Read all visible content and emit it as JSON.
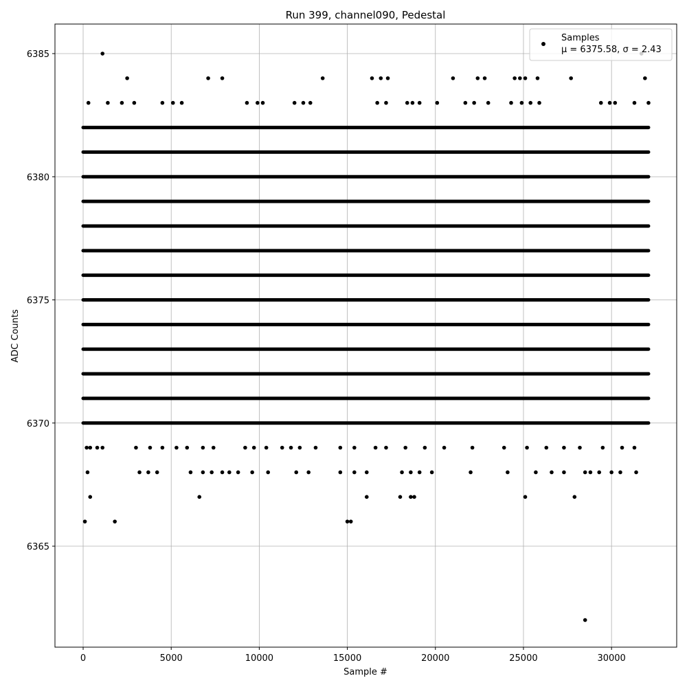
{
  "chart_data": {
    "type": "scatter",
    "title": "Run 399, channel090, Pedestal",
    "xlabel": "Sample #",
    "ylabel": "ADC Counts",
    "xlim": [
      -1600,
      33700
    ],
    "ylim": [
      6360.9,
      6386.2
    ],
    "xticks": [
      0,
      5000,
      10000,
      15000,
      20000,
      25000,
      30000
    ],
    "yticks": [
      6365,
      6370,
      6375,
      6380,
      6385
    ],
    "grid": true,
    "legend_position": "top-right",
    "marker_color": "#000000",
    "series": [
      {
        "name": "Samples",
        "stats_label": "μ = 6375.58, σ = 2.43",
        "x_range": [
          0,
          32100
        ],
        "dense_levels": [
          6370,
          6371,
          6372,
          6373,
          6374,
          6375,
          6376,
          6377,
          6378,
          6379,
          6380,
          6381,
          6382
        ],
        "outliers": [
          {
            "x": 1100,
            "y": 6385
          },
          {
            "x": 31700,
            "y": 6385
          },
          {
            "x": 2500,
            "y": 6384
          },
          {
            "x": 7100,
            "y": 6384
          },
          {
            "x": 7900,
            "y": 6384
          },
          {
            "x": 13600,
            "y": 6384
          },
          {
            "x": 16400,
            "y": 6384
          },
          {
            "x": 16900,
            "y": 6384
          },
          {
            "x": 17300,
            "y": 6384
          },
          {
            "x": 21000,
            "y": 6384
          },
          {
            "x": 22400,
            "y": 6384
          },
          {
            "x": 22800,
            "y": 6384
          },
          {
            "x": 24500,
            "y": 6384
          },
          {
            "x": 24800,
            "y": 6384
          },
          {
            "x": 25100,
            "y": 6384
          },
          {
            "x": 25800,
            "y": 6384
          },
          {
            "x": 27700,
            "y": 6384
          },
          {
            "x": 31900,
            "y": 6384
          },
          {
            "x": 300,
            "y": 6383
          },
          {
            "x": 1400,
            "y": 6383
          },
          {
            "x": 2200,
            "y": 6383
          },
          {
            "x": 2900,
            "y": 6383
          },
          {
            "x": 4500,
            "y": 6383
          },
          {
            "x": 5100,
            "y": 6383
          },
          {
            "x": 5600,
            "y": 6383
          },
          {
            "x": 9300,
            "y": 6383
          },
          {
            "x": 9900,
            "y": 6383
          },
          {
            "x": 10200,
            "y": 6383
          },
          {
            "x": 12000,
            "y": 6383
          },
          {
            "x": 12500,
            "y": 6383
          },
          {
            "x": 12900,
            "y": 6383
          },
          {
            "x": 16700,
            "y": 6383
          },
          {
            "x": 17200,
            "y": 6383
          },
          {
            "x": 18400,
            "y": 6383
          },
          {
            "x": 18700,
            "y": 6383
          },
          {
            "x": 19100,
            "y": 6383
          },
          {
            "x": 20100,
            "y": 6383
          },
          {
            "x": 21700,
            "y": 6383
          },
          {
            "x": 22200,
            "y": 6383
          },
          {
            "x": 23000,
            "y": 6383
          },
          {
            "x": 24300,
            "y": 6383
          },
          {
            "x": 24900,
            "y": 6383
          },
          {
            "x": 25400,
            "y": 6383
          },
          {
            "x": 25900,
            "y": 6383
          },
          {
            "x": 29400,
            "y": 6383
          },
          {
            "x": 29900,
            "y": 6383
          },
          {
            "x": 30200,
            "y": 6383
          },
          {
            "x": 31300,
            "y": 6383
          },
          {
            "x": 32100,
            "y": 6383
          },
          {
            "x": 200,
            "y": 6369
          },
          {
            "x": 400,
            "y": 6369
          },
          {
            "x": 800,
            "y": 6369
          },
          {
            "x": 1100,
            "y": 6369
          },
          {
            "x": 3000,
            "y": 6369
          },
          {
            "x": 3800,
            "y": 6369
          },
          {
            "x": 4500,
            "y": 6369
          },
          {
            "x": 5300,
            "y": 6369
          },
          {
            "x": 5900,
            "y": 6369
          },
          {
            "x": 6800,
            "y": 6369
          },
          {
            "x": 7400,
            "y": 6369
          },
          {
            "x": 9200,
            "y": 6369
          },
          {
            "x": 9700,
            "y": 6369
          },
          {
            "x": 10400,
            "y": 6369
          },
          {
            "x": 11300,
            "y": 6369
          },
          {
            "x": 11800,
            "y": 6369
          },
          {
            "x": 12300,
            "y": 6369
          },
          {
            "x": 13200,
            "y": 6369
          },
          {
            "x": 14600,
            "y": 6369
          },
          {
            "x": 15400,
            "y": 6369
          },
          {
            "x": 16600,
            "y": 6369
          },
          {
            "x": 17200,
            "y": 6369
          },
          {
            "x": 18300,
            "y": 6369
          },
          {
            "x": 19400,
            "y": 6369
          },
          {
            "x": 20500,
            "y": 6369
          },
          {
            "x": 22100,
            "y": 6369
          },
          {
            "x": 23900,
            "y": 6369
          },
          {
            "x": 25200,
            "y": 6369
          },
          {
            "x": 26300,
            "y": 6369
          },
          {
            "x": 27300,
            "y": 6369
          },
          {
            "x": 28200,
            "y": 6369
          },
          {
            "x": 29500,
            "y": 6369
          },
          {
            "x": 30600,
            "y": 6369
          },
          {
            "x": 31300,
            "y": 6369
          },
          {
            "x": 250,
            "y": 6368
          },
          {
            "x": 3200,
            "y": 6368
          },
          {
            "x": 3700,
            "y": 6368
          },
          {
            "x": 4200,
            "y": 6368
          },
          {
            "x": 6100,
            "y": 6368
          },
          {
            "x": 6800,
            "y": 6368
          },
          {
            "x": 7300,
            "y": 6368
          },
          {
            "x": 7900,
            "y": 6368
          },
          {
            "x": 8300,
            "y": 6368
          },
          {
            "x": 8800,
            "y": 6368
          },
          {
            "x": 9600,
            "y": 6368
          },
          {
            "x": 10500,
            "y": 6368
          },
          {
            "x": 12100,
            "y": 6368
          },
          {
            "x": 12800,
            "y": 6368
          },
          {
            "x": 14600,
            "y": 6368
          },
          {
            "x": 15400,
            "y": 6368
          },
          {
            "x": 16100,
            "y": 6368
          },
          {
            "x": 18100,
            "y": 6368
          },
          {
            "x": 18600,
            "y": 6368
          },
          {
            "x": 19100,
            "y": 6368
          },
          {
            "x": 19800,
            "y": 6368
          },
          {
            "x": 22000,
            "y": 6368
          },
          {
            "x": 24100,
            "y": 6368
          },
          {
            "x": 25700,
            "y": 6368
          },
          {
            "x": 26600,
            "y": 6368
          },
          {
            "x": 27300,
            "y": 6368
          },
          {
            "x": 28500,
            "y": 6368
          },
          {
            "x": 28800,
            "y": 6368
          },
          {
            "x": 29300,
            "y": 6368
          },
          {
            "x": 30000,
            "y": 6368
          },
          {
            "x": 30500,
            "y": 6368
          },
          {
            "x": 31400,
            "y": 6368
          },
          {
            "x": 400,
            "y": 6367
          },
          {
            "x": 6600,
            "y": 6367
          },
          {
            "x": 16100,
            "y": 6367
          },
          {
            "x": 18000,
            "y": 6367
          },
          {
            "x": 18600,
            "y": 6367
          },
          {
            "x": 18800,
            "y": 6367
          },
          {
            "x": 25100,
            "y": 6367
          },
          {
            "x": 27900,
            "y": 6367
          },
          {
            "x": 100,
            "y": 6366
          },
          {
            "x": 1800,
            "y": 6366
          },
          {
            "x": 15000,
            "y": 6366
          },
          {
            "x": 15200,
            "y": 6366
          },
          {
            "x": 28500,
            "y": 6362
          }
        ]
      }
    ]
  }
}
